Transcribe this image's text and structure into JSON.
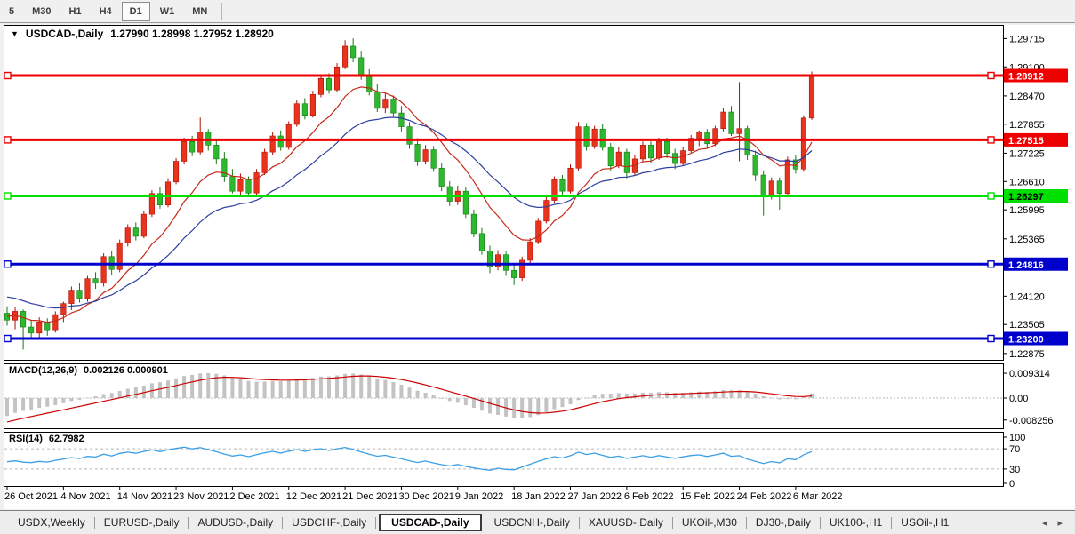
{
  "toolbar": {
    "timeframes": [
      "5",
      "M30",
      "H1",
      "H4",
      "D1",
      "W1",
      "MN"
    ],
    "active": "D1"
  },
  "header": {
    "dropdown_icon": "▼",
    "symbol": "USDCAD-,Daily",
    "quotes": "1.27990 1.28998 1.27952 1.28920"
  },
  "indicators": {
    "macd": {
      "label": "MACD(12,26,9)",
      "values": "0.002126 0.000901",
      "axis_labels": [
        "0.009314",
        "0.00",
        "-0.008256"
      ]
    },
    "rsi": {
      "label": "RSI(14)",
      "value": "62.7982",
      "axis_labels": [
        "100",
        "70",
        "30",
        "0"
      ],
      "levels": [
        70,
        30
      ]
    }
  },
  "tabs": {
    "items": [
      "USDX,Weekly",
      "EURUSD-,Daily",
      "AUDUSD-,Daily",
      "USDCHF-,Daily",
      "USDCAD-,Daily",
      "USDCNH-,Daily",
      "XAUUSD-,Daily",
      "UKOil-,M30",
      "DJ30-,Daily",
      "UK100-,H1",
      "USOil-,H1"
    ],
    "active_index": 4,
    "scroll_left_icon": "◂",
    "scroll_right_icon": "▸"
  },
  "chart_data": {
    "type": "candlestick",
    "symbol": "USDCAD-,Daily",
    "timeframe": "Daily",
    "ohlc_display": {
      "open": "1.27990",
      "high": "1.28998",
      "low": "1.27952",
      "close": "1.28920"
    },
    "y_axis_ticks": [
      "1.29715",
      "1.29100",
      "1.28470",
      "1.27855",
      "1.27225",
      "1.26610",
      "1.25995",
      "1.25365",
      "1.24120",
      "1.23505",
      "1.22875"
    ],
    "x_axis_labels": [
      {
        "i": 0,
        "label": "26 Oct 2021"
      },
      {
        "i": 7,
        "label": "4 Nov 2021"
      },
      {
        "i": 14,
        "label": "14 Nov 2021"
      },
      {
        "i": 21,
        "label": "23 Nov 2021"
      },
      {
        "i": 28,
        "label": "2 Dec 2021"
      },
      {
        "i": 35,
        "label": "12 Dec 2021"
      },
      {
        "i": 42,
        "label": "21 Dec 2021"
      },
      {
        "i": 49,
        "label": "30 Dec 2021"
      },
      {
        "i": 56,
        "label": "9 Jan 2022"
      },
      {
        "i": 63,
        "label": "18 Jan 2022"
      },
      {
        "i": 70,
        "label": "27 Jan 2022"
      },
      {
        "i": 77,
        "label": "6 Feb 2022"
      },
      {
        "i": 84,
        "label": "15 Feb 2022"
      },
      {
        "i": 91,
        "label": "24 Feb 2022"
      },
      {
        "i": 98,
        "label": "6 Mar 2022"
      }
    ],
    "hlines": [
      {
        "price": 1.28912,
        "label": "1.28912",
        "color": "#ee0000",
        "text_color": "#ffffff"
      },
      {
        "price": 1.27515,
        "label": "1.27515",
        "color": "#ee0000",
        "text_color": "#ffffff"
      },
      {
        "price": 1.26297,
        "label": "1.26297",
        "color": "#00e000",
        "text_color": "#000000"
      },
      {
        "price": 1.24816,
        "label": "1.24816",
        "color": "#0000cd",
        "text_color": "#ffffff"
      },
      {
        "price": 1.232,
        "label": "1.23200",
        "color": "#0000cd",
        "text_color": "#ffffff"
      }
    ],
    "ma_periods": {
      "fast": 10,
      "slow": 22
    },
    "colors": {
      "bull": "#e8341c",
      "bull_edge": "#b01005",
      "bear": "#2db92d",
      "bear_edge": "#157a15",
      "ma_fast": "#c62817",
      "ma_slow": "#2e3f9f",
      "macd_hist": "#c3c3c3",
      "macd_signal": "#cc0000",
      "rsi_line": "#3b9fe6",
      "level_dash": "#b8b8b8",
      "axis_text": "#000000"
    },
    "candles": [
      [
        1.2375,
        1.239,
        1.2348,
        1.236
      ],
      [
        1.236,
        1.2388,
        1.234,
        1.2379
      ],
      [
        1.2379,
        1.2383,
        1.2296,
        1.2345
      ],
      [
        1.2345,
        1.236,
        1.2318,
        1.2332
      ],
      [
        1.2332,
        1.2366,
        1.232,
        1.2356
      ],
      [
        1.2356,
        1.2364,
        1.2326,
        1.2339
      ],
      [
        1.2339,
        1.2379,
        1.2333,
        1.2372
      ],
      [
        1.2372,
        1.24,
        1.2356,
        1.2396
      ],
      [
        1.2396,
        1.2433,
        1.2382,
        1.2425
      ],
      [
        1.2425,
        1.244,
        1.2398,
        1.2407
      ],
      [
        1.2407,
        1.2456,
        1.24,
        1.245
      ],
      [
        1.245,
        1.2464,
        1.2428,
        1.244
      ],
      [
        1.244,
        1.2505,
        1.2433,
        1.2498
      ],
      [
        1.2498,
        1.251,
        1.2458,
        1.247
      ],
      [
        1.247,
        1.2535,
        1.2464,
        1.2528
      ],
      [
        1.2528,
        1.2568,
        1.252,
        1.256
      ],
      [
        1.256,
        1.2572,
        1.2533,
        1.2542
      ],
      [
        1.2542,
        1.2598,
        1.2538,
        1.259
      ],
      [
        1.259,
        1.2642,
        1.2584,
        1.2635
      ],
      [
        1.2635,
        1.265,
        1.2602,
        1.261
      ],
      [
        1.261,
        1.2668,
        1.2605,
        1.266
      ],
      [
        1.266,
        1.2712,
        1.2655,
        1.2705
      ],
      [
        1.2705,
        1.2756,
        1.2698,
        1.2748
      ],
      [
        1.2748,
        1.276,
        1.2716,
        1.2725
      ],
      [
        1.2725,
        1.28,
        1.272,
        1.2768
      ],
      [
        1.2768,
        1.2775,
        1.2728,
        1.274
      ],
      [
        1.274,
        1.275,
        1.2698,
        1.271
      ],
      [
        1.271,
        1.2725,
        1.266,
        1.2672
      ],
      [
        1.2672,
        1.2688,
        1.2635,
        1.264
      ],
      [
        1.264,
        1.2678,
        1.2632,
        1.2665
      ],
      [
        1.2665,
        1.2672,
        1.2628,
        1.2636
      ],
      [
        1.2636,
        1.2688,
        1.263,
        1.268
      ],
      [
        1.268,
        1.2732,
        1.2675,
        1.2725
      ],
      [
        1.2725,
        1.2768,
        1.2718,
        1.276
      ],
      [
        1.276,
        1.2772,
        1.2728,
        1.2735
      ],
      [
        1.2735,
        1.2792,
        1.273,
        1.2785
      ],
      [
        1.2785,
        1.2838,
        1.278,
        1.283
      ],
      [
        1.283,
        1.2842,
        1.2796,
        1.2805
      ],
      [
        1.2805,
        1.2858,
        1.28,
        1.285
      ],
      [
        1.285,
        1.2894,
        1.2844,
        1.2885
      ],
      [
        1.2885,
        1.2896,
        1.2852,
        1.286
      ],
      [
        1.286,
        1.2918,
        1.2855,
        1.291
      ],
      [
        1.291,
        1.2968,
        1.2905,
        1.2955
      ],
      [
        1.2955,
        1.2972,
        1.292,
        1.293
      ],
      [
        1.293,
        1.2945,
        1.2882,
        1.289
      ],
      [
        1.289,
        1.2905,
        1.2848,
        1.2855
      ],
      [
        1.2855,
        1.2872,
        1.2812,
        1.282
      ],
      [
        1.282,
        1.2852,
        1.281,
        1.284
      ],
      [
        1.284,
        1.2848,
        1.2802,
        1.281
      ],
      [
        1.281,
        1.2825,
        1.277,
        1.278
      ],
      [
        1.278,
        1.279,
        1.2732,
        1.2742
      ],
      [
        1.2742,
        1.2755,
        1.2695,
        1.2705
      ],
      [
        1.2705,
        1.274,
        1.2698,
        1.273
      ],
      [
        1.273,
        1.2738,
        1.2682,
        1.269
      ],
      [
        1.269,
        1.27,
        1.264,
        1.265
      ],
      [
        1.265,
        1.2662,
        1.2608,
        1.2618
      ],
      [
        1.2618,
        1.2652,
        1.261,
        1.264
      ],
      [
        1.264,
        1.2648,
        1.2582,
        1.259
      ],
      [
        1.259,
        1.26,
        1.254,
        1.2548
      ],
      [
        1.2548,
        1.256,
        1.2502,
        1.251
      ],
      [
        1.251,
        1.2522,
        1.2462,
        1.2475
      ],
      [
        1.2475,
        1.2512,
        1.2468,
        1.2502
      ],
      [
        1.2502,
        1.251,
        1.2456,
        1.2468
      ],
      [
        1.2468,
        1.248,
        1.2436,
        1.2452
      ],
      [
        1.2452,
        1.2498,
        1.2445,
        1.249
      ],
      [
        1.249,
        1.2538,
        1.2484,
        1.253
      ],
      [
        1.253,
        1.2582,
        1.2525,
        1.2575
      ],
      [
        1.2575,
        1.2628,
        1.257,
        1.262
      ],
      [
        1.262,
        1.2672,
        1.2615,
        1.2665
      ],
      [
        1.2665,
        1.2675,
        1.2628,
        1.264
      ],
      [
        1.264,
        1.2698,
        1.2635,
        1.269
      ],
      [
        1.269,
        1.279,
        1.2685,
        1.278
      ],
      [
        1.278,
        1.2788,
        1.2728,
        1.2738
      ],
      [
        1.2738,
        1.2782,
        1.2732,
        1.2775
      ],
      [
        1.2775,
        1.2785,
        1.2728,
        1.2735
      ],
      [
        1.2735,
        1.2745,
        1.2685,
        1.2695
      ],
      [
        1.2695,
        1.2735,
        1.269,
        1.2725
      ],
      [
        1.2725,
        1.2732,
        1.2668,
        1.268
      ],
      [
        1.268,
        1.2718,
        1.2675,
        1.271
      ],
      [
        1.271,
        1.2748,
        1.2705,
        1.274
      ],
      [
        1.274,
        1.2748,
        1.2702,
        1.2712
      ],
      [
        1.2712,
        1.2756,
        1.2708,
        1.2748
      ],
      [
        1.2748,
        1.2756,
        1.2712,
        1.2722
      ],
      [
        1.2722,
        1.2732,
        1.2688,
        1.27
      ],
      [
        1.27,
        1.2735,
        1.2695,
        1.2728
      ],
      [
        1.2728,
        1.2762,
        1.2723,
        1.2755
      ],
      [
        1.2755,
        1.2772,
        1.2738,
        1.2768
      ],
      [
        1.2768,
        1.2775,
        1.2733,
        1.2743
      ],
      [
        1.2743,
        1.2782,
        1.2738,
        1.2776
      ],
      [
        1.2776,
        1.282,
        1.277,
        1.2812
      ],
      [
        1.2812,
        1.2825,
        1.276,
        1.2765
      ],
      [
        1.2765,
        1.2877,
        1.2705,
        1.2776
      ],
      [
        1.2776,
        1.2782,
        1.2708,
        1.2718
      ],
      [
        1.2718,
        1.2728,
        1.2662,
        1.2675
      ],
      [
        1.2675,
        1.2685,
        1.2587,
        1.263
      ],
      [
        1.263,
        1.267,
        1.2622,
        1.2662
      ],
      [
        1.2662,
        1.267,
        1.26,
        1.2635
      ],
      [
        1.2635,
        1.2715,
        1.263,
        1.2708
      ],
      [
        1.2708,
        1.2718,
        1.2678,
        1.2688
      ],
      [
        1.2688,
        1.2805,
        1.2682,
        1.2799
      ],
      [
        1.2799,
        1.28998,
        1.27952,
        1.2892
      ]
    ]
  }
}
